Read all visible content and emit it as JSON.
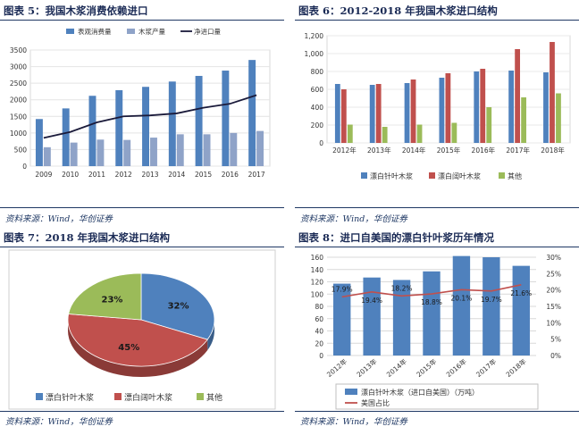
{
  "panels": [
    {
      "title": "图表 5：我国木浆消费依赖进口",
      "source": "资料来源：Wind，华创证券",
      "chart_data": {
        "type": "bar",
        "categories": [
          "2009",
          "2010",
          "2011",
          "2012",
          "2013",
          "2014",
          "2015",
          "2016",
          "2017"
        ],
        "yticks": [
          "0",
          "500",
          "1000",
          "1500",
          "2000",
          "2500",
          "3000",
          "3500"
        ],
        "ylim": [
          0,
          3500
        ],
        "series": [
          {
            "name": "表观消费量",
            "kind": "bar",
            "color": "#4f81bd",
            "values": [
              1420,
              1740,
              2120,
              2290,
              2390,
              2550,
              2720,
              2880,
              3200
            ]
          },
          {
            "name": "木浆产量",
            "kind": "bar",
            "color": "#8fa3c8",
            "values": [
              570,
              710,
              800,
              790,
              860,
              960,
              960,
              1000,
              1060
            ]
          },
          {
            "name": "净进口量",
            "kind": "line",
            "color": "#1a1a3a",
            "values": [
              850,
              1030,
              1320,
              1500,
              1530,
              1590,
              1760,
              1880,
              2140
            ]
          }
        ]
      }
    },
    {
      "title": "图表 6：2012-2018 年我国木浆进口结构",
      "source": "资料来源：Wind，华创证券",
      "chart_data": {
        "type": "bar",
        "categories": [
          "2012年",
          "2013年",
          "2014年",
          "2015年",
          "2016年",
          "2017年",
          "2018年"
        ],
        "yticks": [
          "0",
          "200",
          "400",
          "600",
          "800",
          "1,000",
          "1,200"
        ],
        "ylim": [
          0,
          1200
        ],
        "series": [
          {
            "name": "漂白针叶木浆",
            "color": "#4f81bd",
            "values": [
              660,
              650,
              670,
              730,
              800,
              810,
              790
            ]
          },
          {
            "name": "漂白阔叶木浆",
            "color": "#c0504d",
            "values": [
              600,
              660,
              710,
              780,
              830,
              1050,
              1130
            ]
          },
          {
            "name": "其他",
            "color": "#9bbb59",
            "values": [
              205,
              180,
              205,
              225,
              400,
              510,
              555
            ]
          }
        ]
      }
    },
    {
      "title": "图表 7：2018 年我国木浆进口结构",
      "source": "资料来源：Wind，华创证券",
      "chart_data": {
        "type": "pie",
        "slices": [
          {
            "label": "漂白针叶木浆",
            "value": 32,
            "text": "32%",
            "color": "#4f81bd"
          },
          {
            "label": "漂白阔叶木浆",
            "value": 45,
            "text": "45%",
            "color": "#c0504d"
          },
          {
            "label": "其他",
            "value": 23,
            "text": "23%",
            "color": "#9bbb59"
          }
        ]
      }
    },
    {
      "title": "图表 8：进口自美国的漂白针叶浆历年情况",
      "source": "资料来源：Wind，华创证券",
      "chart_data": {
        "type": "bar",
        "categories": [
          "2012年",
          "2013年",
          "2014年",
          "2015年",
          "2016年",
          "2017年",
          "2018年"
        ],
        "yticks_left": [
          "0",
          "20",
          "40",
          "60",
          "80",
          "100",
          "120",
          "140",
          "160"
        ],
        "yticks_right": [
          "0%",
          "5%",
          "10%",
          "15%",
          "20%",
          "25%",
          "30%"
        ],
        "ylim_left": [
          0,
          160
        ],
        "ylim_right": [
          0,
          30
        ],
        "series": [
          {
            "name": "漂白针叶木浆（进口自美国）（万吨）",
            "kind": "bar",
            "color": "#4f81bd",
            "values": [
              117,
              127,
              123,
              137,
              162,
              160,
              146
            ]
          },
          {
            "name": "美国占比",
            "kind": "line",
            "color": "#c0504d",
            "values": [
              17.9,
              19.4,
              18.2,
              18.8,
              20.1,
              19.7,
              21.6
            ],
            "labels": [
              "17.9%",
              "19.4%",
              "18.2%",
              "18.8%",
              "20.1%",
              "19.7%",
              "21.6%"
            ]
          }
        ]
      }
    }
  ]
}
